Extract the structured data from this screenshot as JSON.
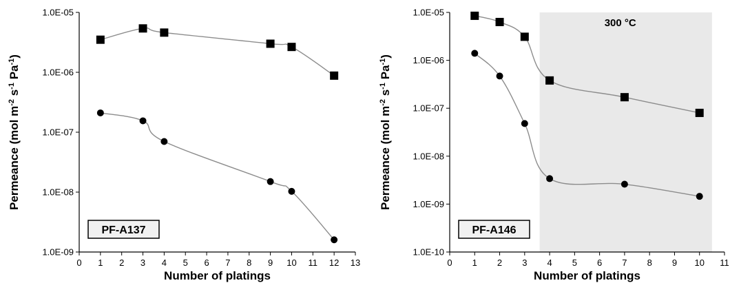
{
  "chart_data": [
    {
      "type": "line",
      "id": "left",
      "title": "",
      "tag": "PF-A137",
      "xlabel": "Number of platings",
      "ylabel": "Permeance (mol m",
      "ylabel_parts": [
        "Permeance (mol m",
        "-2",
        " s",
        "-1",
        " Pa",
        "-1",
        ")"
      ],
      "xlim": [
        0,
        13
      ],
      "xticks": [
        0,
        1,
        2,
        3,
        4,
        5,
        6,
        7,
        8,
        9,
        10,
        11,
        12,
        13
      ],
      "ylim": [
        1e-09,
        1e-05
      ],
      "y_scale": "log",
      "yticks": [
        "1.0E-05",
        "1.0E-06",
        "1.0E-07",
        "1.0E-08",
        "1.0E-09"
      ],
      "ytick_values": [
        1e-05,
        1e-06,
        1e-07,
        1e-08,
        1e-09
      ],
      "grid": false,
      "series": [
        {
          "marker": "square",
          "x": [
            1,
            3,
            4,
            9,
            10,
            12
          ],
          "y": [
            3.5e-06,
            5.4e-06,
            4.6e-06,
            3e-06,
            2.65e-06,
            8.8e-07
          ]
        },
        {
          "marker": "circle",
          "x": [
            1,
            3,
            4,
            9,
            10,
            12
          ],
          "y": [
            2.1e-07,
            1.55e-07,
            7e-08,
            1.5e-08,
            1.03e-08,
            1.6e-09
          ]
        }
      ]
    },
    {
      "type": "line",
      "id": "right",
      "title": "",
      "tag": "PF-A146",
      "annotation": "300 °C",
      "shaded_x_range": [
        3.6,
        10.5
      ],
      "xlabel": "Number of platings",
      "ylabel": "Permeance (mol m",
      "ylabel_parts": [
        "Permeance (mol m",
        "-2",
        " s",
        "-1",
        " Pa",
        "-1",
        ")"
      ],
      "xlim": [
        0,
        11
      ],
      "xticks": [
        0,
        1,
        2,
        3,
        4,
        5,
        6,
        7,
        8,
        9,
        10,
        11
      ],
      "ylim": [
        1e-10,
        1e-05
      ],
      "y_scale": "log",
      "yticks": [
        "1.0E-05",
        "1.0E-06",
        "1.0E-07",
        "1.0E-08",
        "1.0E-09",
        "1.0E-10"
      ],
      "ytick_values": [
        1e-05,
        1e-06,
        1e-07,
        1e-08,
        1e-09,
        1e-10
      ],
      "grid": false,
      "series": [
        {
          "marker": "square",
          "x": [
            1,
            2,
            3,
            4,
            7,
            10
          ],
          "y": [
            8.5e-06,
            6.3e-06,
            3.1e-06,
            3.8e-07,
            1.7e-07,
            8e-08
          ]
        },
        {
          "marker": "circle",
          "x": [
            1,
            2,
            3,
            4,
            7,
            10
          ],
          "y": [
            1.4e-06,
            4.7e-07,
            4.8e-08,
            3.4e-09,
            2.6e-09,
            1.45e-09
          ]
        }
      ]
    }
  ]
}
